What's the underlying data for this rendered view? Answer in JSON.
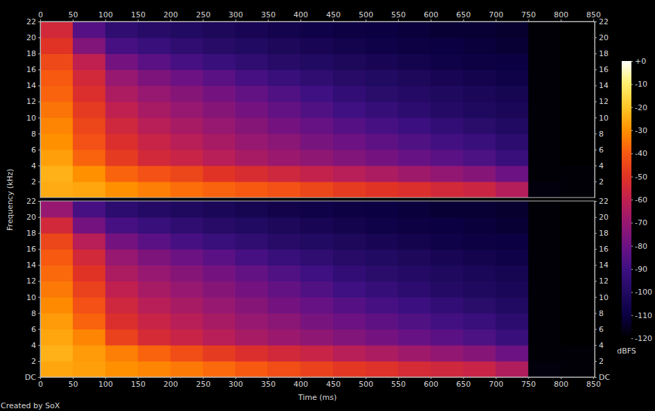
{
  "chart_data": {
    "type": "heatmap",
    "x_label": "Time (ms)",
    "y_label": "Frequency (kHz)",
    "xlim": [
      0,
      852
    ],
    "xticks": [
      0,
      50,
      100,
      150,
      200,
      250,
      300,
      350,
      400,
      450,
      500,
      550,
      600,
      650,
      700,
      750,
      800,
      850
    ],
    "ylim": [
      0,
      22
    ],
    "x_bins": [
      0,
      50,
      100,
      150,
      200,
      250,
      300,
      350,
      400,
      450,
      500,
      550,
      600,
      650,
      700,
      750,
      800,
      850
    ],
    "y_bins": [
      0,
      2,
      4,
      6,
      8,
      10,
      12,
      14,
      16,
      18,
      20,
      22
    ],
    "panels": [
      {
        "yticks": [
          2,
          4,
          6,
          8,
          10,
          12,
          14,
          16,
          18,
          20,
          22
        ],
        "cells": [
          [
            -25,
            -26,
            -30,
            -33,
            -36,
            -38,
            -40,
            -42,
            -45,
            -48,
            -50,
            -52,
            -55,
            -57,
            -63,
            -118,
            -119
          ],
          [
            -24,
            -30,
            -38,
            -42,
            -45,
            -50,
            -53,
            -56,
            -59,
            -62,
            -65,
            -68,
            -71,
            -74,
            -80,
            -119,
            -119
          ],
          [
            -27,
            -38,
            -48,
            -55,
            -58,
            -62,
            -66,
            -69,
            -72,
            -75,
            -78,
            -81,
            -84,
            -87,
            -92,
            -119,
            -120
          ],
          [
            -30,
            -42,
            -52,
            -58,
            -62,
            -66,
            -70,
            -73,
            -77,
            -80,
            -83,
            -86,
            -89,
            -92,
            -96,
            -119,
            -120
          ],
          [
            -32,
            -45,
            -56,
            -62,
            -66,
            -70,
            -74,
            -78,
            -81,
            -85,
            -88,
            -91,
            -94,
            -97,
            -100,
            -119,
            -120
          ],
          [
            -35,
            -48,
            -60,
            -66,
            -70,
            -74,
            -78,
            -82,
            -86,
            -90,
            -93,
            -96,
            -99,
            -101,
            -103,
            -119,
            -120
          ],
          [
            -38,
            -52,
            -65,
            -70,
            -74,
            -78,
            -82,
            -86,
            -90,
            -94,
            -97,
            -99,
            -101,
            -103,
            -105,
            -119,
            -120
          ],
          [
            -40,
            -55,
            -70,
            -76,
            -80,
            -84,
            -88,
            -92,
            -95,
            -98,
            -100,
            -102,
            -104,
            -106,
            -108,
            -119,
            -120
          ],
          [
            -44,
            -60,
            -78,
            -84,
            -88,
            -92,
            -95,
            -98,
            -100,
            -102,
            -104,
            -106,
            -108,
            -109,
            -110,
            -119,
            -120
          ],
          [
            -50,
            -75,
            -88,
            -92,
            -95,
            -98,
            -100,
            -102,
            -104,
            -106,
            -108,
            -109,
            -110,
            -111,
            -112,
            -119,
            -120
          ],
          [
            -55,
            -85,
            -95,
            -98,
            -100,
            -102,
            -104,
            -106,
            -108,
            -109,
            -110,
            -111,
            -112,
            -112,
            -113,
            -119,
            -120
          ]
        ]
      },
      {
        "yticks": [
          {
            "value": 0,
            "label": "DC"
          },
          2,
          4,
          6,
          8,
          10,
          12,
          14,
          16,
          18,
          20,
          22
        ],
        "cells": [
          [
            -26,
            -27,
            -30,
            -32,
            -34,
            -37,
            -40,
            -43,
            -46,
            -49,
            -51,
            -54,
            -56,
            -58,
            -64,
            -118,
            -119
          ],
          [
            -24,
            -28,
            -33,
            -38,
            -43,
            -48,
            -52,
            -55,
            -58,
            -62,
            -65,
            -68,
            -71,
            -74,
            -80,
            -119,
            -119
          ],
          [
            -26,
            -32,
            -46,
            -54,
            -58,
            -62,
            -66,
            -69,
            -72,
            -75,
            -78,
            -81,
            -84,
            -87,
            -92,
            -119,
            -120
          ],
          [
            -28,
            -38,
            -52,
            -58,
            -62,
            -66,
            -70,
            -73,
            -77,
            -80,
            -83,
            -86,
            -89,
            -92,
            -96,
            -119,
            -120
          ],
          [
            -31,
            -42,
            -56,
            -62,
            -66,
            -70,
            -74,
            -78,
            -81,
            -85,
            -88,
            -91,
            -94,
            -97,
            -100,
            -119,
            -120
          ],
          [
            -34,
            -46,
            -60,
            -66,
            -70,
            -74,
            -78,
            -82,
            -86,
            -90,
            -93,
            -96,
            -99,
            -101,
            -103,
            -119,
            -120
          ],
          [
            -37,
            -50,
            -65,
            -70,
            -74,
            -78,
            -82,
            -86,
            -90,
            -94,
            -97,
            -99,
            -101,
            -103,
            -105,
            -119,
            -120
          ],
          [
            -40,
            -55,
            -70,
            -76,
            -80,
            -84,
            -88,
            -92,
            -95,
            -98,
            -100,
            -102,
            -104,
            -106,
            -108,
            -119,
            -120
          ],
          [
            -45,
            -62,
            -78,
            -84,
            -88,
            -92,
            -95,
            -98,
            -100,
            -102,
            -104,
            -106,
            -108,
            -109,
            -110,
            -119,
            -120
          ],
          [
            -55,
            -78,
            -88,
            -92,
            -95,
            -98,
            -100,
            -102,
            -104,
            -106,
            -108,
            -109,
            -110,
            -111,
            -112,
            -119,
            -120
          ],
          [
            -70,
            -88,
            -96,
            -99,
            -101,
            -103,
            -105,
            -107,
            -108,
            -109,
            -110,
            -111,
            -112,
            -112,
            -113,
            -119,
            -120
          ]
        ]
      }
    ],
    "colorbar": {
      "range": [
        -120,
        0
      ],
      "ticks": [
        {
          "value": 0,
          "label": "+0"
        },
        -10,
        -20,
        -30,
        -40,
        -50,
        -60,
        -70,
        -80,
        -90,
        -100,
        -110,
        -120
      ],
      "label": "dBFS"
    }
  },
  "footer": "Created by SoX"
}
